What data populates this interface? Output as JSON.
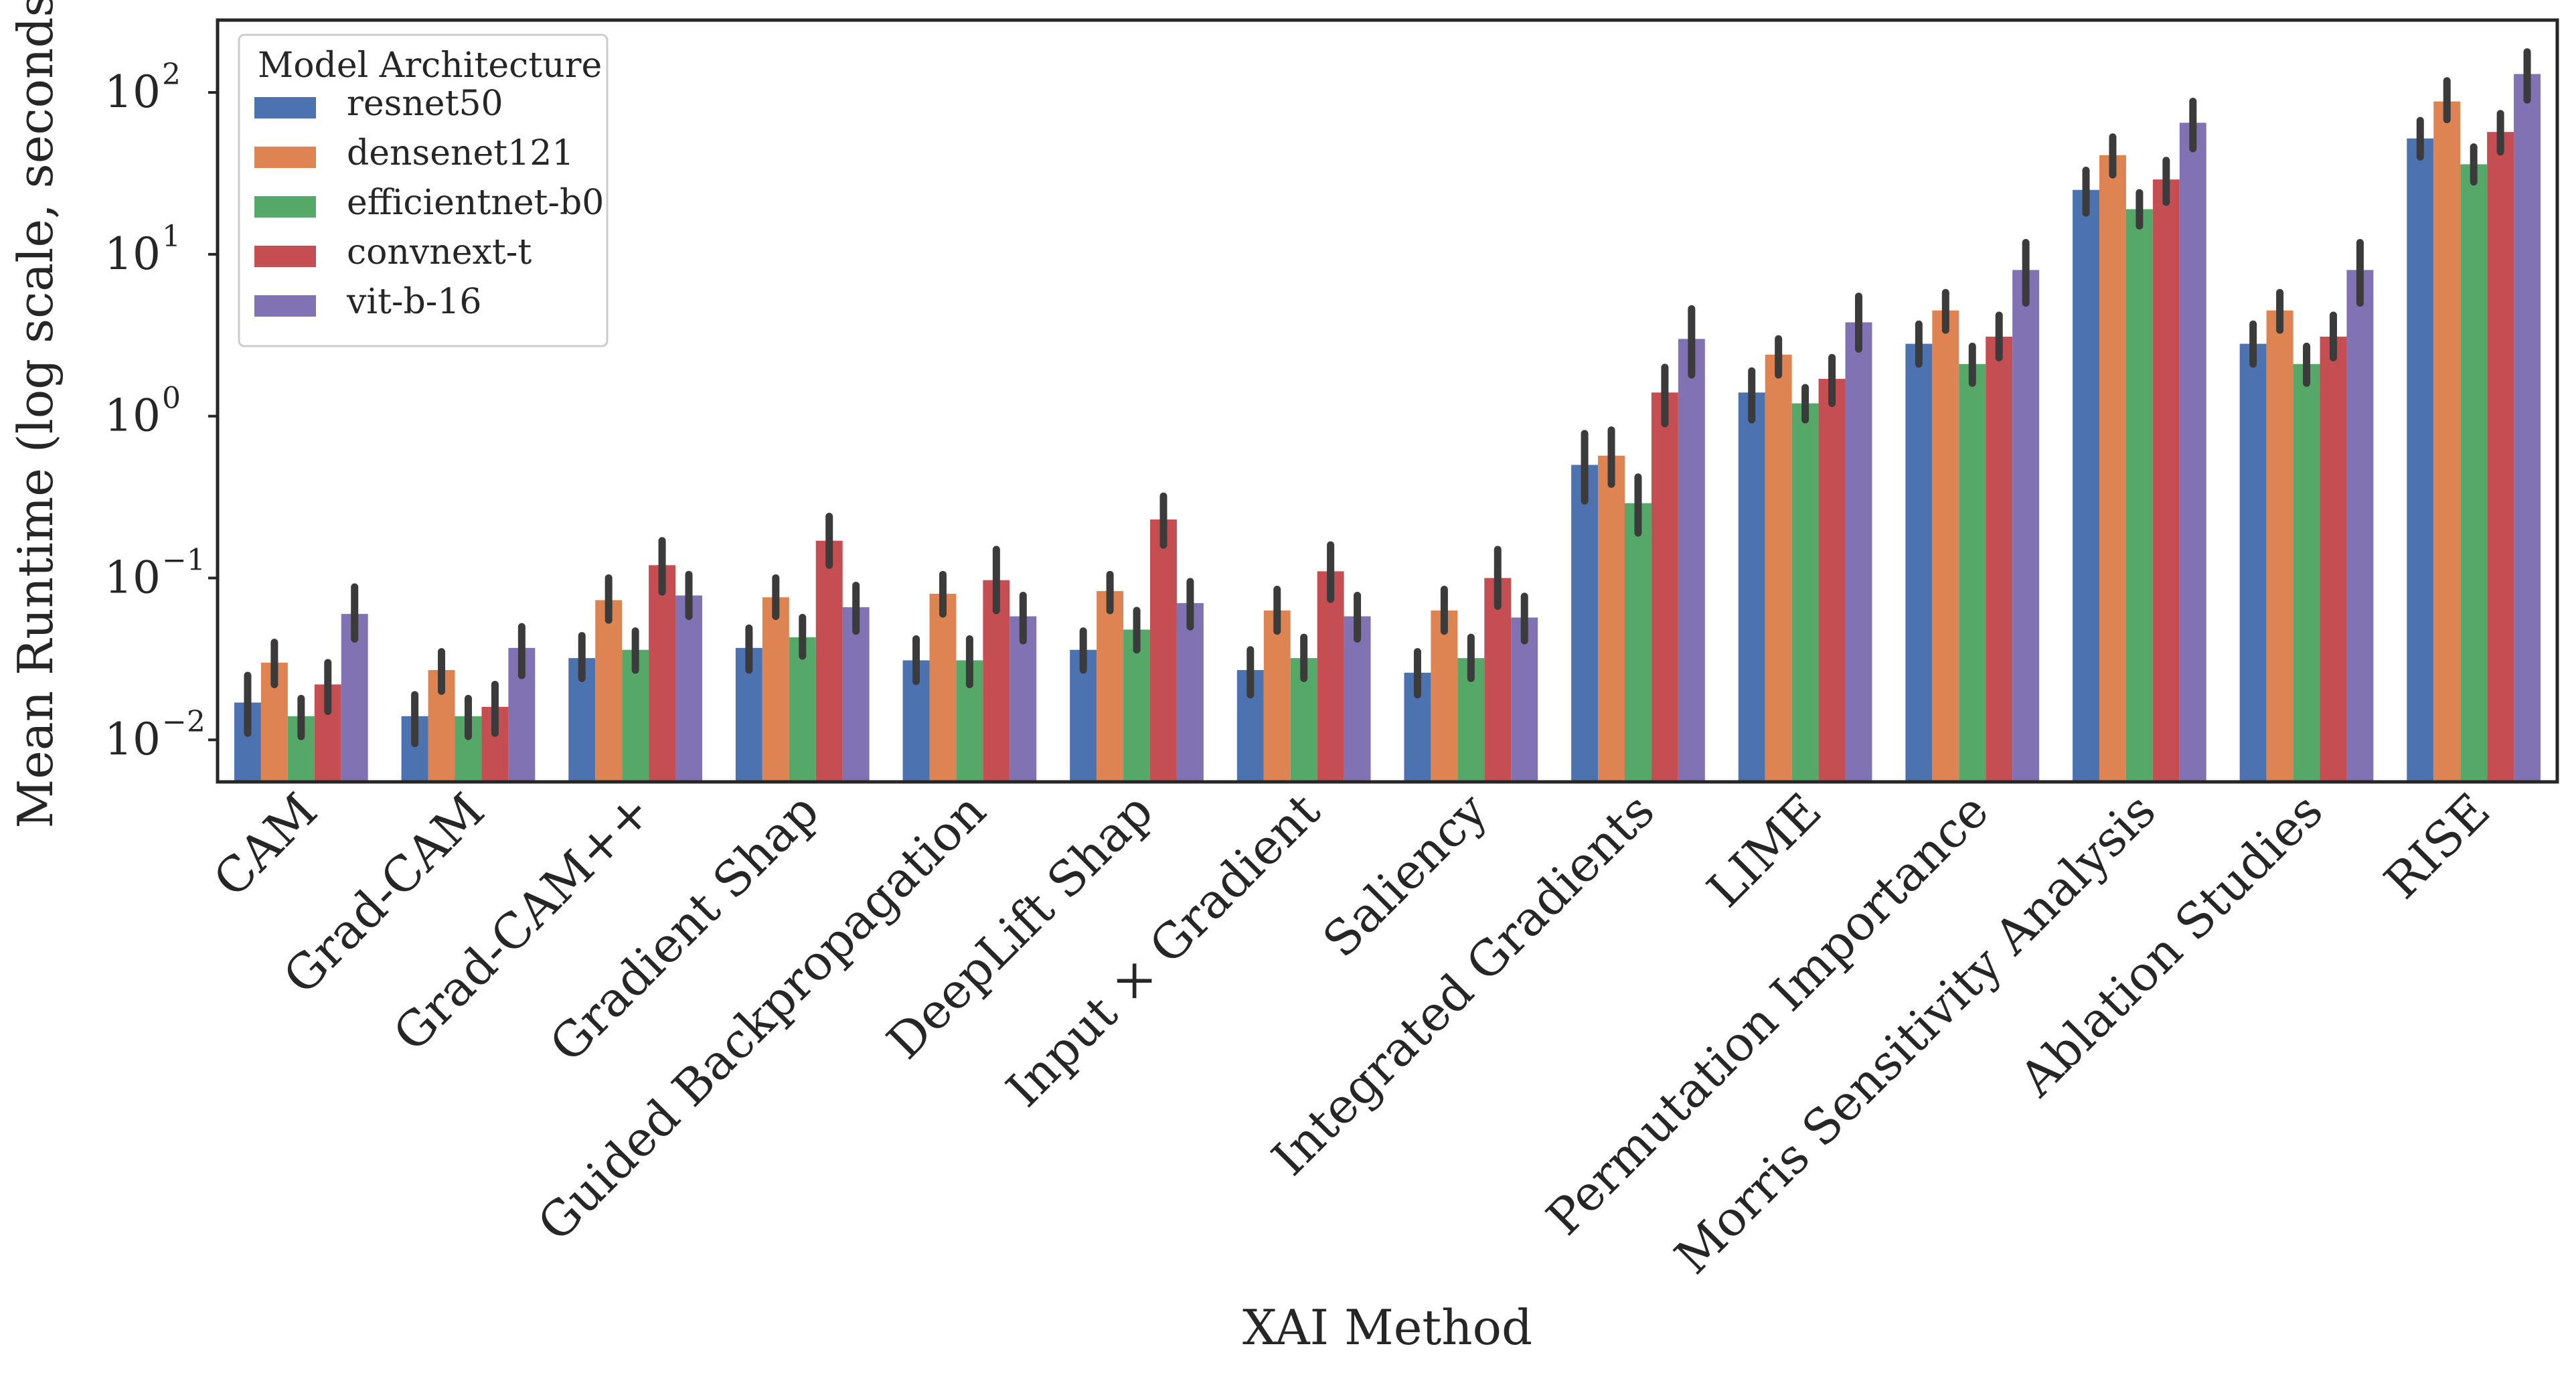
{
  "chart_data": {
    "type": "bar",
    "title": "",
    "xlabel": "XAI Method",
    "ylabel": "Mean Runtime (log scale, seconds)",
    "yscale": "log",
    "ylim": [
      0.0055,
      280
    ],
    "yticks": [
      {
        "value": 0.01,
        "base": "10",
        "exp": "−2"
      },
      {
        "value": 0.1,
        "base": "10",
        "exp": "−1"
      },
      {
        "value": 1,
        "base": "10",
        "exp": "0"
      },
      {
        "value": 10,
        "base": "10",
        "exp": "1"
      },
      {
        "value": 100,
        "base": "10",
        "exp": "2"
      }
    ],
    "grid": false,
    "legend": {
      "title": "Model Architecture",
      "placement": "top-left"
    },
    "categories": [
      "CAM",
      "Grad-CAM",
      "Grad-CAM++",
      "Gradient Shap",
      "Guided Backpropagation",
      "DeepLift Shap",
      "Input × Gradient",
      "Saliency",
      "Integrated Gradients",
      "LIME",
      "Permutation Importance",
      "Morris Sensitivity Analysis",
      "Ablation Studies",
      "RISE"
    ],
    "series": [
      {
        "name": "resnet50",
        "color": "#4c72b0",
        "values": [
          0.017,
          0.014,
          0.032,
          0.037,
          0.031,
          0.036,
          0.027,
          0.026,
          0.5,
          1.4,
          2.8,
          25,
          2.8,
          52
        ],
        "err_low": [
          0.011,
          0.0095,
          0.024,
          0.027,
          0.023,
          0.027,
          0.019,
          0.019,
          0.3,
          0.95,
          2.1,
          18,
          2.1,
          40
        ],
        "err_high": [
          0.025,
          0.019,
          0.044,
          0.049,
          0.042,
          0.047,
          0.036,
          0.035,
          0.78,
          1.9,
          3.7,
          33,
          3.7,
          67
        ]
      },
      {
        "name": "densenet121",
        "color": "#dd8452",
        "values": [
          0.03,
          0.027,
          0.073,
          0.076,
          0.08,
          0.083,
          0.063,
          0.063,
          0.57,
          2.4,
          4.5,
          41,
          4.5,
          88
        ],
        "err_low": [
          0.022,
          0.02,
          0.055,
          0.058,
          0.06,
          0.063,
          0.047,
          0.047,
          0.38,
          1.8,
          3.4,
          31,
          3.4,
          68
        ],
        "err_high": [
          0.04,
          0.035,
          0.1,
          0.1,
          0.105,
          0.105,
          0.085,
          0.085,
          0.82,
          3.0,
          5.8,
          53,
          5.8,
          118
        ]
      },
      {
        "name": "efficientnet-b0",
        "color": "#55a868",
        "values": [
          0.014,
          0.014,
          0.036,
          0.043,
          0.031,
          0.048,
          0.032,
          0.032,
          0.29,
          1.2,
          2.1,
          19,
          2.1,
          36
        ],
        "err_low": [
          0.0105,
          0.0105,
          0.027,
          0.033,
          0.022,
          0.036,
          0.024,
          0.024,
          0.19,
          0.95,
          1.6,
          15,
          1.6,
          28
        ],
        "err_high": [
          0.018,
          0.018,
          0.047,
          0.057,
          0.042,
          0.063,
          0.043,
          0.043,
          0.42,
          1.5,
          2.7,
          24,
          2.7,
          46
        ]
      },
      {
        "name": "convnext-t",
        "color": "#c44e52",
        "values": [
          0.022,
          0.016,
          0.12,
          0.17,
          0.097,
          0.23,
          0.11,
          0.1,
          1.4,
          1.7,
          3.1,
          29,
          3.1,
          57
        ],
        "err_low": [
          0.015,
          0.011,
          0.082,
          0.12,
          0.063,
          0.16,
          0.074,
          0.067,
          0.9,
          1.2,
          2.3,
          21,
          2.3,
          43
        ],
        "err_high": [
          0.03,
          0.022,
          0.17,
          0.24,
          0.15,
          0.32,
          0.16,
          0.15,
          2.0,
          2.3,
          4.2,
          38,
          4.2,
          74
        ]
      },
      {
        "name": "vit-b-16",
        "color": "#8172b3",
        "values": [
          0.06,
          0.037,
          0.078,
          0.066,
          0.058,
          0.07,
          0.058,
          0.057,
          3.0,
          3.8,
          8.0,
          65,
          8.0,
          130
        ],
        "err_low": [
          0.042,
          0.025,
          0.058,
          0.047,
          0.041,
          0.05,
          0.042,
          0.041,
          1.8,
          2.6,
          5.0,
          45,
          5.0,
          90
        ],
        "err_high": [
          0.088,
          0.05,
          0.105,
          0.09,
          0.078,
          0.095,
          0.078,
          0.077,
          4.6,
          5.5,
          11.8,
          88,
          11.8,
          178
        ]
      }
    ]
  }
}
